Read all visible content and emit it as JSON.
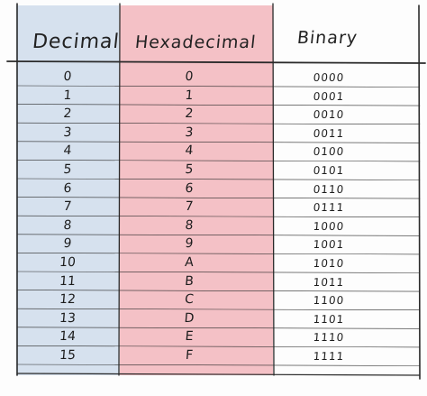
{
  "table": {
    "headers": {
      "decimal": "Decimal",
      "hexadecimal": "Hexadecimal",
      "binary": "Binary"
    },
    "rows": [
      {
        "decimal": "0",
        "hexadecimal": "0",
        "binary": "0000"
      },
      {
        "decimal": "1",
        "hexadecimal": "1",
        "binary": "0001"
      },
      {
        "decimal": "2",
        "hexadecimal": "2",
        "binary": "0010"
      },
      {
        "decimal": "3",
        "hexadecimal": "3",
        "binary": "0011"
      },
      {
        "decimal": "4",
        "hexadecimal": "4",
        "binary": "0100"
      },
      {
        "decimal": "5",
        "hexadecimal": "5",
        "binary": "0101"
      },
      {
        "decimal": "6",
        "hexadecimal": "6",
        "binary": "0110"
      },
      {
        "decimal": "7",
        "hexadecimal": "7",
        "binary": "0111"
      },
      {
        "decimal": "8",
        "hexadecimal": "8",
        "binary": "1000"
      },
      {
        "decimal": "9",
        "hexadecimal": "9",
        "binary": "1001"
      },
      {
        "decimal": "10",
        "hexadecimal": "A",
        "binary": "1010"
      },
      {
        "decimal": "11",
        "hexadecimal": "B",
        "binary": "1011"
      },
      {
        "decimal": "12",
        "hexadecimal": "C",
        "binary": "1100"
      },
      {
        "decimal": "13",
        "hexadecimal": "D",
        "binary": "1101"
      },
      {
        "decimal": "14",
        "hexadecimal": "E",
        "binary": "1110"
      },
      {
        "decimal": "15",
        "hexadecimal": "F",
        "binary": "1111"
      }
    ]
  },
  "colors": {
    "decimal_column": "#d6e1ee",
    "hexadecimal_column": "#f4c1c6",
    "ink": "#1c1c1c"
  }
}
